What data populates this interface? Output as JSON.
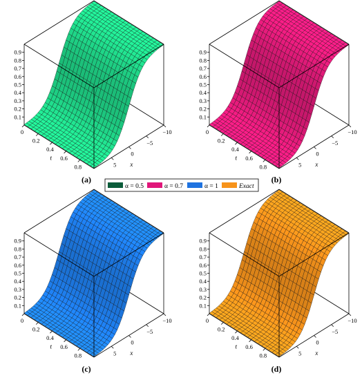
{
  "figure": {
    "panels": [
      {
        "id": "a",
        "label": "(a)",
        "color": "#1fd889",
        "dark": "#0b5c3a"
      },
      {
        "id": "b",
        "label": "(b)",
        "color": "#e11a79",
        "dark": "#5c0a31"
      },
      {
        "id": "c",
        "label": "(c)",
        "color": "#1e7fef",
        "dark": "#0a2f63"
      },
      {
        "id": "d",
        "label": "(d)",
        "color": "#f7931b",
        "dark": "#6a3c06"
      }
    ],
    "legend": [
      {
        "label": "α = 0.5",
        "color": "#0b5c3a"
      },
      {
        "label": "α = 0.7",
        "color": "#e0167a"
      },
      {
        "label": "α = 1",
        "color": "#1f73e0"
      },
      {
        "label": "Exact",
        "color": "#f7931b"
      }
    ]
  },
  "chart_data": [
    {
      "type": "surface",
      "panel": "(a)",
      "series_label": "α = 0.5",
      "xlabel": "x",
      "ylabel": "t",
      "xticks": [
        "5",
        "0",
        "−5",
        "−10"
      ],
      "tticks": [
        "0",
        "0.2",
        "0.4",
        "0.6",
        "0.8"
      ],
      "zticks": [
        "0.1",
        "0.2",
        "0.3",
        "0.4",
        "0.5",
        "0.6",
        "0.7",
        "0.8",
        "0.9"
      ],
      "xlim": [
        -10,
        10
      ],
      "tlim": [
        0,
        1
      ],
      "zlim": [
        0,
        1
      ]
    },
    {
      "type": "surface",
      "panel": "(b)",
      "series_label": "α = 0.7",
      "xlabel": "x",
      "ylabel": "t",
      "xticks": [
        "5",
        "0",
        "−5",
        "−10"
      ],
      "tticks": [
        "0",
        "0.2",
        "0.4",
        "0.6",
        "0.8"
      ],
      "zticks": [
        "0.1",
        "0.2",
        "0.3",
        "0.4",
        "0.5",
        "0.6",
        "0.7",
        "0.8",
        "0.9"
      ],
      "xlim": [
        -10,
        10
      ],
      "tlim": [
        0,
        1
      ],
      "zlim": [
        0,
        1
      ]
    },
    {
      "type": "surface",
      "panel": "(c)",
      "series_label": "α = 1",
      "xlabel": "x",
      "ylabel": "t",
      "xticks": [
        "5",
        "0",
        "−5",
        "−10"
      ],
      "tticks": [
        "0",
        "0.2",
        "0.4",
        "0.6",
        "0.8"
      ],
      "zticks": [
        "0.1",
        "0.2",
        "0.3",
        "0.4",
        "0.5",
        "0.6",
        "0.7",
        "0.8",
        "0.9"
      ],
      "xlim": [
        -10,
        10
      ],
      "tlim": [
        0,
        1
      ],
      "zlim": [
        0,
        1
      ]
    },
    {
      "type": "surface",
      "panel": "(d)",
      "series_label": "Exact",
      "xlabel": "x",
      "ylabel": "t",
      "xticks": [
        "5",
        "0",
        "−5",
        "−10"
      ],
      "tticks": [
        "0",
        "0.2",
        "0.4",
        "0.6",
        "0.8"
      ],
      "zticks": [
        "0.1",
        "0.2",
        "0.3",
        "0.4",
        "0.5",
        "0.6",
        "0.7",
        "0.8",
        "0.9"
      ],
      "xlim": [
        -10,
        10
      ],
      "tlim": [
        0,
        1
      ],
      "zlim": [
        0,
        1
      ]
    }
  ]
}
